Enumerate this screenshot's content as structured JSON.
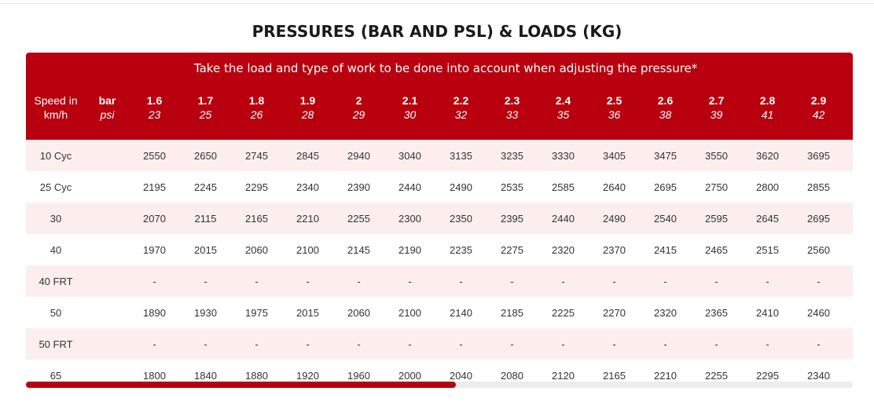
{
  "page": {
    "title": "PRESSURES (BAR AND PSL) & LOADS (KG)",
    "accent_color": "#b8000f",
    "stripe_color": "#fdeeee"
  },
  "table": {
    "note": "Take the load and type of work to be done into account when adjusting the pressure*",
    "speed_header": [
      "Speed in",
      "km/h"
    ],
    "bar_label": "bar",
    "psi_label": "psi",
    "pressures": [
      {
        "bar": "1.6",
        "psi": "23"
      },
      {
        "bar": "1.7",
        "psi": "25"
      },
      {
        "bar": "1.8",
        "psi": "26"
      },
      {
        "bar": "1.9",
        "psi": "28"
      },
      {
        "bar": "2",
        "psi": "29"
      },
      {
        "bar": "2.1",
        "psi": "30"
      },
      {
        "bar": "2.2",
        "psi": "32"
      },
      {
        "bar": "2.3",
        "psi": "33"
      },
      {
        "bar": "2.4",
        "psi": "35"
      },
      {
        "bar": "2.5",
        "psi": "36"
      },
      {
        "bar": "2.6",
        "psi": "38"
      },
      {
        "bar": "2.7",
        "psi": "39"
      },
      {
        "bar": "2.8",
        "psi": "41"
      },
      {
        "bar": "2.9",
        "psi": "42"
      }
    ],
    "rows": [
      {
        "speed": "10 Cyc",
        "loads": [
          "2550",
          "2650",
          "2745",
          "2845",
          "2940",
          "3040",
          "3135",
          "3235",
          "3330",
          "3405",
          "3475",
          "3550",
          "3620",
          "3695"
        ]
      },
      {
        "speed": "25 Cyc",
        "loads": [
          "2195",
          "2245",
          "2295",
          "2340",
          "2390",
          "2440",
          "2490",
          "2535",
          "2585",
          "2640",
          "2695",
          "2750",
          "2800",
          "2855"
        ]
      },
      {
        "speed": "30",
        "loads": [
          "2070",
          "2115",
          "2165",
          "2210",
          "2255",
          "2300",
          "2350",
          "2395",
          "2440",
          "2490",
          "2540",
          "2595",
          "2645",
          "2695"
        ]
      },
      {
        "speed": "40",
        "loads": [
          "1970",
          "2015",
          "2060",
          "2100",
          "2145",
          "2190",
          "2235",
          "2275",
          "2320",
          "2370",
          "2415",
          "2465",
          "2515",
          "2560"
        ]
      },
      {
        "speed": "40 FRT",
        "loads": [
          "-",
          "-",
          "-",
          "-",
          "-",
          "-",
          "-",
          "-",
          "-",
          "-",
          "-",
          "-",
          "-",
          "-"
        ]
      },
      {
        "speed": "50",
        "loads": [
          "1890",
          "1930",
          "1975",
          "2015",
          "2060",
          "2100",
          "2140",
          "2185",
          "2225",
          "2270",
          "2320",
          "2365",
          "2410",
          "2460"
        ]
      },
      {
        "speed": "50 FRT",
        "loads": [
          "-",
          "-",
          "-",
          "-",
          "-",
          "-",
          "-",
          "-",
          "-",
          "-",
          "-",
          "-",
          "-",
          "-"
        ]
      },
      {
        "speed": "65",
        "loads": [
          "1800",
          "1840",
          "1880",
          "1920",
          "1960",
          "2000",
          "2040",
          "2080",
          "2120",
          "2165",
          "2210",
          "2255",
          "2295",
          "2340"
        ]
      }
    ],
    "scroll_position": 0.52
  }
}
